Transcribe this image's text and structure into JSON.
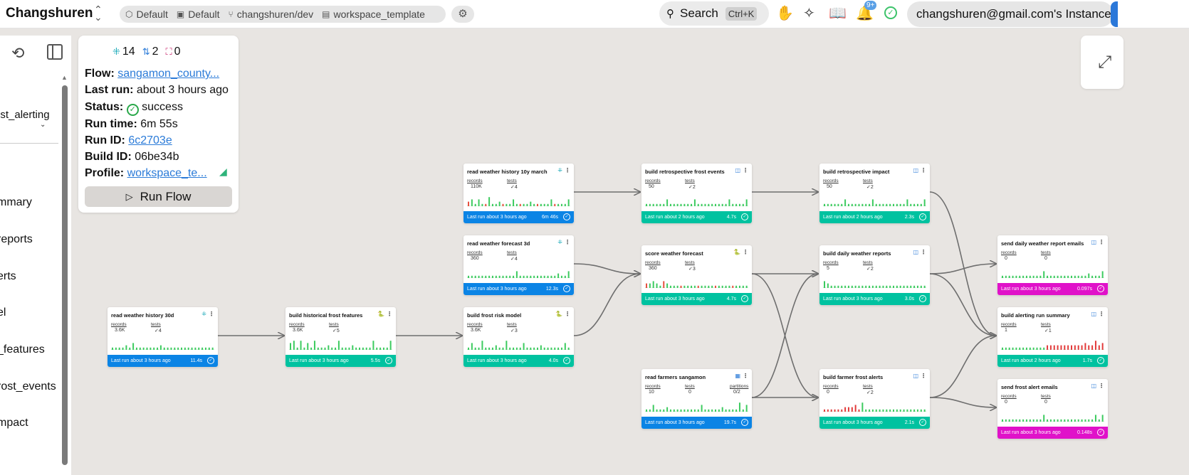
{
  "topbar": {
    "org": "Changshuren",
    "crumbs": [
      {
        "icon": "shield-icon",
        "glyph": "⬡",
        "label": "Default"
      },
      {
        "icon": "folder-icon",
        "glyph": "▣",
        "label": "Default"
      },
      {
        "icon": "branch-icon",
        "glyph": "⑂",
        "label": "changshuren/dev"
      },
      {
        "icon": "file-icon",
        "glyph": "▤",
        "label": "workspace_template"
      }
    ],
    "search_label": "Search",
    "search_shortcut": "Ctrl+K",
    "notification_count": "9+",
    "instance": "changshuren@gmail.com's Instance"
  },
  "left_panel": {
    "selected_flow": "ost_alerting",
    "items": [
      "mmary",
      "reports",
      "erts",
      "el",
      "_features",
      "rost_events",
      "mpact"
    ]
  },
  "info": {
    "stats": [
      {
        "icon": "model-icon",
        "glyph": "⁜",
        "color": "#1aa9b8",
        "value": "14"
      },
      {
        "icon": "branch-icon",
        "glyph": "⇅",
        "color": "#2b7bd8",
        "value": "2"
      },
      {
        "icon": "focus-icon",
        "glyph": "⛶",
        "color": "#c8236b",
        "value": "0"
      }
    ],
    "flow_label": "Flow:",
    "flow_value": "sangamon_county...",
    "last_run_label": "Last run:",
    "last_run_value": "about 3 hours ago",
    "status_label": "Status:",
    "status_value": "success",
    "run_time_label": "Run time:",
    "run_time_value": "6m 55s",
    "run_id_label": "Run ID:",
    "run_id_value": "6c2703e",
    "build_id_label": "Build ID:",
    "build_id_value": "06be34b",
    "profile_label": "Profile:",
    "profile_value": "workspace_te...",
    "run_button": "Run Flow"
  },
  "colors": {
    "blue": "#0b84e5",
    "teal": "#00c2a0",
    "magenta": "#e012c9",
    "edge": "#6e6e6e"
  },
  "nodes": [
    {
      "id": "n1",
      "title": "read weather history 30d",
      "type_icon": "model-icon",
      "type_glyph": "⁜",
      "type_color": "#1aa9b8",
      "metrics": [
        {
          "label": "records",
          "value": "3.6K"
        },
        {
          "label": "tests",
          "value": "✓4"
        }
      ],
      "footer": "Last run about 3 hours ago",
      "duration": "11.4s",
      "color": "blue",
      "bars": [
        1,
        1,
        1,
        1,
        2,
        1,
        3,
        1,
        1,
        1,
        1,
        1,
        1,
        1,
        2,
        1,
        1,
        1,
        1,
        1,
        1,
        1,
        1,
        1,
        1,
        1,
        1,
        1,
        1,
        1
      ],
      "bar_colors": "green"
    },
    {
      "id": "n2",
      "title": "build historical frost features",
      "type_icon": "python-icon",
      "type_glyph": "🐍",
      "type_color": "#3572a5",
      "metrics": [
        {
          "label": "records",
          "value": "3.6K"
        },
        {
          "label": "tests",
          "value": "✓5"
        }
      ],
      "footer": "Last run about 3 hours ago",
      "duration": "5.5s",
      "color": "teal",
      "bars": [
        3,
        4,
        1,
        4,
        1,
        3,
        1,
        4,
        1,
        1,
        1,
        2,
        1,
        1,
        4,
        1,
        1,
        1,
        2,
        1,
        1,
        1,
        1,
        1,
        4,
        1,
        1,
        1,
        1,
        4
      ],
      "bar_colors": "green"
    },
    {
      "id": "n3",
      "title": "build frost risk model",
      "type_icon": "python-icon",
      "type_glyph": "🐍",
      "type_color": "#3572a5",
      "metrics": [
        {
          "label": "records",
          "value": "3.6K"
        },
        {
          "label": "tests",
          "value": "✓3"
        }
      ],
      "footer": "Last run about 3 hours ago",
      "duration": "4.0s",
      "color": "teal",
      "bars": [
        1,
        3,
        1,
        1,
        4,
        1,
        1,
        1,
        2,
        1,
        1,
        4,
        1,
        1,
        1,
        1,
        3,
        1,
        1,
        1,
        1,
        2,
        1,
        1,
        1,
        1,
        1,
        1,
        3,
        1
      ],
      "bar_colors": "green"
    },
    {
      "id": "n4",
      "title": "read weather history 10y march",
      "type_icon": "model-icon",
      "type_glyph": "⁜",
      "type_color": "#1aa9b8",
      "metrics": [
        {
          "label": "records",
          "value": "110K"
        },
        {
          "label": "tests",
          "value": "✓4"
        }
      ],
      "footer": "Last run about 3 hours ago",
      "duration": "6m 46s",
      "color": "blue",
      "bars": [
        2,
        3,
        1,
        3,
        1,
        1,
        4,
        1,
        1,
        2,
        1,
        1,
        1,
        3,
        1,
        1,
        1,
        1,
        2,
        1,
        1,
        1,
        1,
        1,
        3,
        1,
        1,
        1,
        1,
        3
      ],
      "bar_colors": "mixed"
    },
    {
      "id": "n5",
      "title": "read weather forecast 3d",
      "type_icon": "model-icon",
      "type_glyph": "⁜",
      "type_color": "#1aa9b8",
      "metrics": [
        {
          "label": "records",
          "value": "360"
        },
        {
          "label": "tests",
          "value": "✓4"
        }
      ],
      "footer": "Last run about 3 hours ago",
      "duration": "12.3s",
      "color": "blue",
      "bars": [
        1,
        1,
        1,
        1,
        1,
        1,
        1,
        1,
        1,
        1,
        1,
        1,
        1,
        1,
        3,
        1,
        1,
        1,
        1,
        1,
        1,
        1,
        1,
        1,
        1,
        1,
        2,
        1,
        1,
        3
      ],
      "bar_colors": "green"
    },
    {
      "id": "n6",
      "title": "build retrospective frost events",
      "type_icon": "sql-icon",
      "type_glyph": "◫",
      "type_color": "#2b7bd8",
      "metrics": [
        {
          "label": "records",
          "value": "50"
        },
        {
          "label": "tests",
          "value": "✓2"
        }
      ],
      "footer": "Last run about 2 hours ago",
      "duration": "4.7s",
      "color": "teal",
      "bars": [
        1,
        1,
        1,
        1,
        1,
        1,
        3,
        1,
        1,
        1,
        1,
        1,
        1,
        1,
        3,
        1,
        1,
        1,
        1,
        1,
        1,
        1,
        1,
        1,
        3,
        1,
        1,
        1,
        1,
        3
      ],
      "bar_colors": "green"
    },
    {
      "id": "n7",
      "title": "score weather forecast",
      "type_icon": "python-icon",
      "type_glyph": "🐍",
      "type_color": "#3572a5",
      "metrics": [
        {
          "label": "records",
          "value": "360"
        },
        {
          "label": "tests",
          "value": "✓3"
        }
      ],
      "footer": "Last run about 3 hours ago",
      "duration": "4.7s",
      "color": "teal",
      "bars": [
        2,
        2,
        3,
        2,
        1,
        3,
        2,
        1,
        1,
        1,
        1,
        1,
        1,
        1,
        1,
        1,
        1,
        1,
        1,
        1,
        1,
        1,
        1,
        1,
        1,
        1,
        1,
        1,
        1,
        1
      ],
      "bar_colors": "mixed"
    },
    {
      "id": "n8",
      "title": "read farmers sangamon",
      "type_icon": "file-icon",
      "type_glyph": "▦",
      "type_color": "#2b7bd8",
      "metrics": [
        {
          "label": "records",
          "value": "10"
        },
        {
          "label": "tests",
          "value": "0"
        },
        {
          "label": "partitions",
          "value": "0/2"
        }
      ],
      "footer": "Last run about 3 hours ago",
      "duration": "19.7s",
      "color": "blue",
      "bars": [
        1,
        1,
        3,
        1,
        1,
        1,
        2,
        1,
        1,
        1,
        1,
        1,
        1,
        1,
        1,
        1,
        3,
        1,
        1,
        1,
        1,
        1,
        2,
        1,
        1,
        1,
        1,
        4,
        1,
        3
      ],
      "bar_colors": "green"
    },
    {
      "id": "n9",
      "title": "build retrospective impact",
      "type_icon": "sql-icon",
      "type_glyph": "◫",
      "type_color": "#2b7bd8",
      "metrics": [
        {
          "label": "records",
          "value": "50"
        },
        {
          "label": "tests",
          "value": "✓2"
        }
      ],
      "footer": "Last run about 2 hours ago",
      "duration": "2.3s",
      "color": "teal",
      "bars": [
        1,
        1,
        1,
        1,
        1,
        1,
        3,
        1,
        1,
        1,
        1,
        1,
        1,
        1,
        3,
        1,
        1,
        1,
        1,
        1,
        1,
        1,
        1,
        1,
        3,
        1,
        1,
        1,
        1,
        3
      ],
      "bar_colors": "green"
    },
    {
      "id": "n10",
      "title": "build daily weather reports",
      "type_icon": "sql-icon",
      "type_glyph": "◫",
      "type_color": "#2b7bd8",
      "metrics": [
        {
          "label": "records",
          "value": "5"
        },
        {
          "label": "tests",
          "value": "✓2"
        }
      ],
      "footer": "Last run about 3 hours ago",
      "duration": "3.0s",
      "color": "teal",
      "bars": [
        3,
        2,
        1,
        1,
        1,
        1,
        1,
        1,
        1,
        1,
        1,
        1,
        1,
        1,
        1,
        1,
        1,
        1,
        1,
        1,
        1,
        1,
        1,
        1,
        1,
        1,
        1,
        1,
        1,
        1
      ],
      "bar_colors": "green"
    },
    {
      "id": "n11",
      "title": "build farmer frost alerts",
      "type_icon": "sql-icon",
      "type_glyph": "◫",
      "type_color": "#2b7bd8",
      "metrics": [
        {
          "label": "records",
          "value": "0"
        },
        {
          "label": "tests",
          "value": "✓2"
        }
      ],
      "footer": "Last run about 3 hours ago",
      "duration": "2.1s",
      "color": "teal",
      "bars": [
        1,
        1,
        1,
        1,
        1,
        1,
        2,
        2,
        2,
        3,
        1,
        4,
        1,
        1,
        1,
        1,
        1,
        1,
        1,
        1,
        1,
        1,
        1,
        1,
        1,
        1,
        1,
        1,
        1,
        1
      ],
      "bar_colors": "red-green"
    },
    {
      "id": "n12",
      "title": "send daily weather report emails",
      "type_icon": "sql-icon",
      "type_glyph": "◫",
      "type_color": "#2b7bd8",
      "metrics": [
        {
          "label": "records",
          "value": "0"
        },
        {
          "label": "tests",
          "value": "0"
        }
      ],
      "footer": "Last run about 3 hours ago",
      "duration": "0.097s",
      "color": "magenta",
      "bars": [
        1,
        1,
        1,
        1,
        1,
        1,
        1,
        1,
        1,
        1,
        1,
        1,
        3,
        1,
        1,
        1,
        1,
        1,
        1,
        1,
        1,
        1,
        1,
        1,
        1,
        2,
        1,
        1,
        1,
        3
      ],
      "bar_colors": "green"
    },
    {
      "id": "n13",
      "title": "build alerting run summary",
      "type_icon": "sql-icon",
      "type_glyph": "◫",
      "type_color": "#2b7bd8",
      "metrics": [
        {
          "label": "records",
          "value": "1"
        },
        {
          "label": "tests",
          "value": "✓1"
        }
      ],
      "footer": "Last run about 2 hours ago",
      "duration": "1.7s",
      "color": "teal",
      "bars": [
        1,
        1,
        1,
        1,
        1,
        1,
        1,
        1,
        1,
        1,
        1,
        1,
        1,
        2,
        2,
        2,
        2,
        2,
        2,
        2,
        2,
        2,
        2,
        2,
        3,
        2,
        2,
        4,
        2,
        3
      ],
      "bar_colors": "red"
    },
    {
      "id": "n14",
      "title": "send frost alert emails",
      "type_icon": "sql-icon",
      "type_glyph": "◫",
      "type_color": "#2b7bd8",
      "metrics": [
        {
          "label": "records",
          "value": "0"
        },
        {
          "label": "tests",
          "value": "0"
        }
      ],
      "footer": "Last run about 3 hours ago",
      "duration": "0.148s",
      "color": "magenta",
      "bars": [
        1,
        1,
        1,
        1,
        1,
        1,
        1,
        1,
        1,
        1,
        1,
        1,
        3,
        1,
        1,
        1,
        1,
        1,
        1,
        1,
        1,
        1,
        1,
        1,
        1,
        1,
        1,
        3,
        1,
        3
      ],
      "bar_colors": "green"
    }
  ]
}
